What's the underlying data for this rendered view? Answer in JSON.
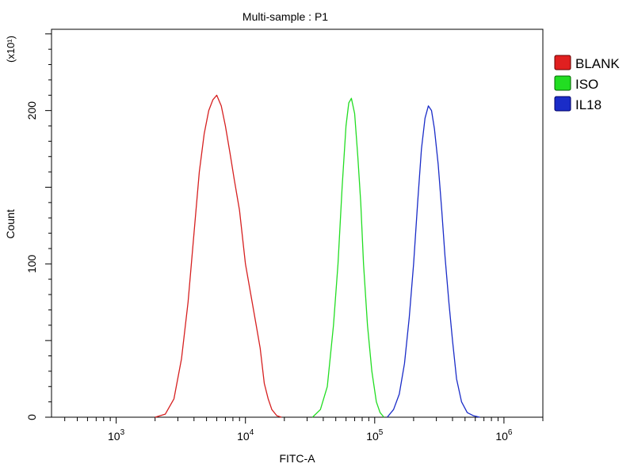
{
  "chart_data": {
    "type": "line",
    "title": "Multi-sample : P1",
    "xlabel": "FITC-A",
    "ylabel": "Count",
    "y_multiplier_label": "(x10¹)",
    "x_scale": "log",
    "x_range": [
      316,
      2000000
    ],
    "x_ticks": [
      1000,
      10000,
      100000,
      1000000
    ],
    "x_tick_labels": [
      {
        "base": "10",
        "exp": "3"
      },
      {
        "base": "10",
        "exp": "4"
      },
      {
        "base": "10",
        "exp": "5"
      },
      {
        "base": "10",
        "exp": "6"
      }
    ],
    "ylim": [
      0,
      253
    ],
    "y_ticks": [
      0,
      100,
      200
    ],
    "y_tick_labels": [
      "0",
      "100",
      "200"
    ],
    "grid": false,
    "legend_position": "right",
    "series": [
      {
        "name": "BLANK",
        "color": "#d62020",
        "x": [
          2000,
          2400,
          2800,
          3200,
          3600,
          4000,
          4400,
          4800,
          5200,
          5600,
          6000,
          6500,
          7000,
          7600,
          8200,
          9000,
          10000,
          11000,
          12000,
          13000,
          14000,
          15000,
          16000,
          17500,
          19000
        ],
        "y": [
          0,
          2,
          12,
          38,
          75,
          120,
          160,
          185,
          200,
          207,
          210,
          203,
          190,
          172,
          155,
          135,
          100,
          80,
          62,
          45,
          22,
          12,
          5,
          1,
          0
        ]
      },
      {
        "name": "ISO",
        "color": "#22dd22",
        "x": [
          33000,
          38000,
          43000,
          48000,
          52000,
          56000,
          60000,
          63000,
          66000,
          70000,
          74000,
          78000,
          82000,
          88000,
          95000,
          103000,
          110000,
          118000
        ],
        "y": [
          0,
          5,
          20,
          60,
          100,
          150,
          190,
          205,
          208,
          198,
          170,
          140,
          100,
          60,
          30,
          10,
          3,
          0
        ]
      },
      {
        "name": "IL18",
        "color": "#1a2cc8",
        "x": [
          125000,
          140000,
          155000,
          170000,
          185000,
          200000,
          215000,
          230000,
          245000,
          260000,
          275000,
          290000,
          310000,
          330000,
          350000,
          375000,
          400000,
          430000,
          470000,
          520000,
          580000,
          650000
        ],
        "y": [
          0,
          5,
          15,
          35,
          65,
          100,
          140,
          175,
          195,
          203,
          200,
          188,
          165,
          135,
          105,
          75,
          50,
          25,
          10,
          3,
          1,
          0
        ]
      }
    ]
  }
}
